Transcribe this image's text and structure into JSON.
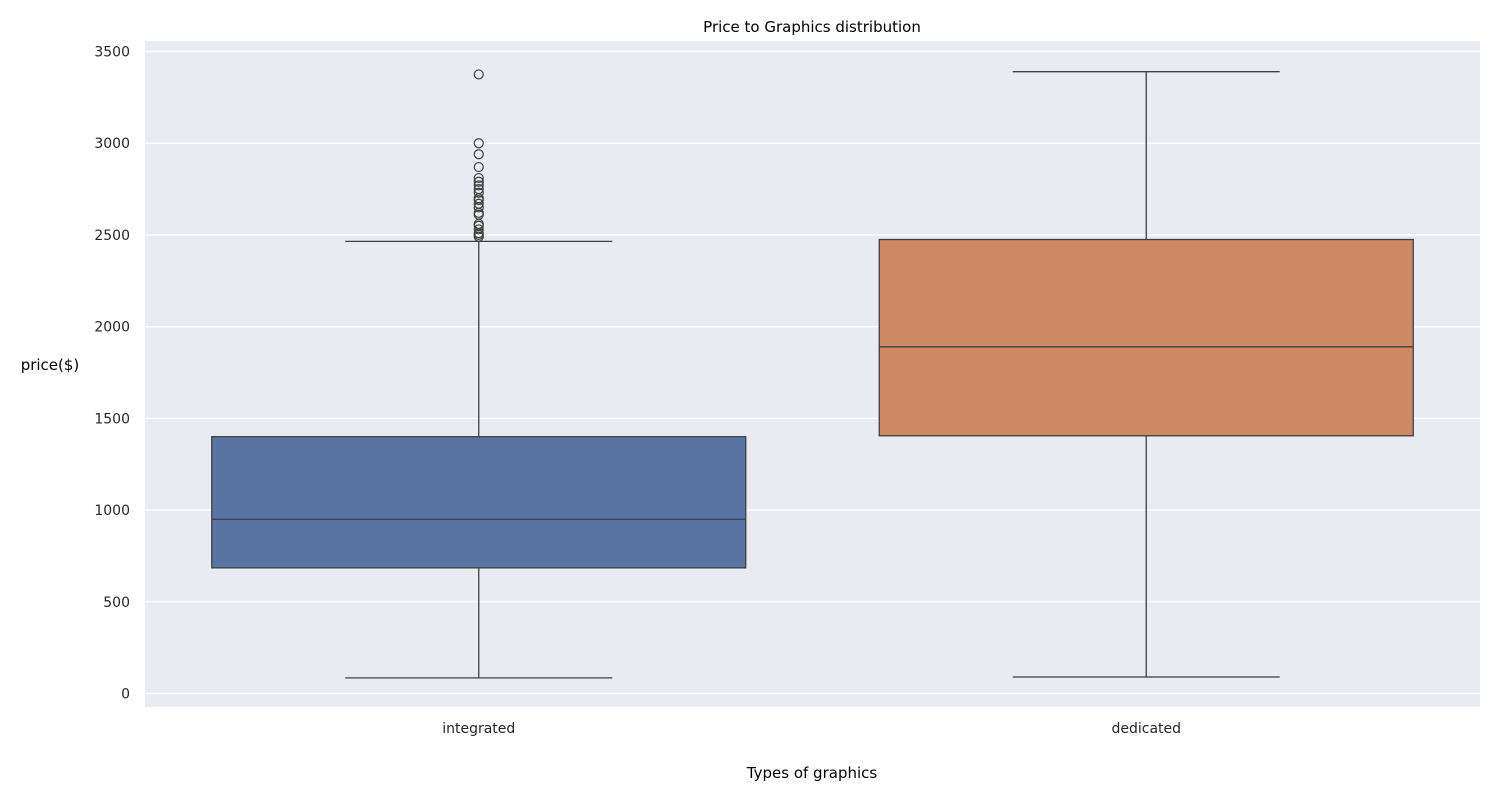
{
  "chart_data": {
    "type": "box",
    "title": "Price to Graphics distribution",
    "xlabel": "Types of graphics",
    "ylabel": "price($)",
    "ylim": [
      -75,
      3555
    ],
    "yticks": [
      0,
      500,
      1000,
      1500,
      2000,
      2500,
      3000,
      3500
    ],
    "grid": true,
    "categories": [
      "integrated",
      "dedicated"
    ],
    "boxes": [
      {
        "category": "integrated",
        "color": "#5875a4",
        "whisker_low": 85,
        "q1": 685,
        "median": 950,
        "q3": 1400,
        "whisker_high": 2465,
        "outliers": [
          2490,
          2500,
          2510,
          2530,
          2550,
          2560,
          2610,
          2620,
          2650,
          2670,
          2690,
          2700,
          2730,
          2750,
          2770,
          2790,
          2810,
          2870,
          2940,
          3000,
          3375
        ]
      },
      {
        "category": "dedicated",
        "color": "#cc8963",
        "whisker_low": 90,
        "q1": 1405,
        "median": 1890,
        "q3": 2475,
        "whisker_high": 3390,
        "outliers": []
      }
    ]
  }
}
